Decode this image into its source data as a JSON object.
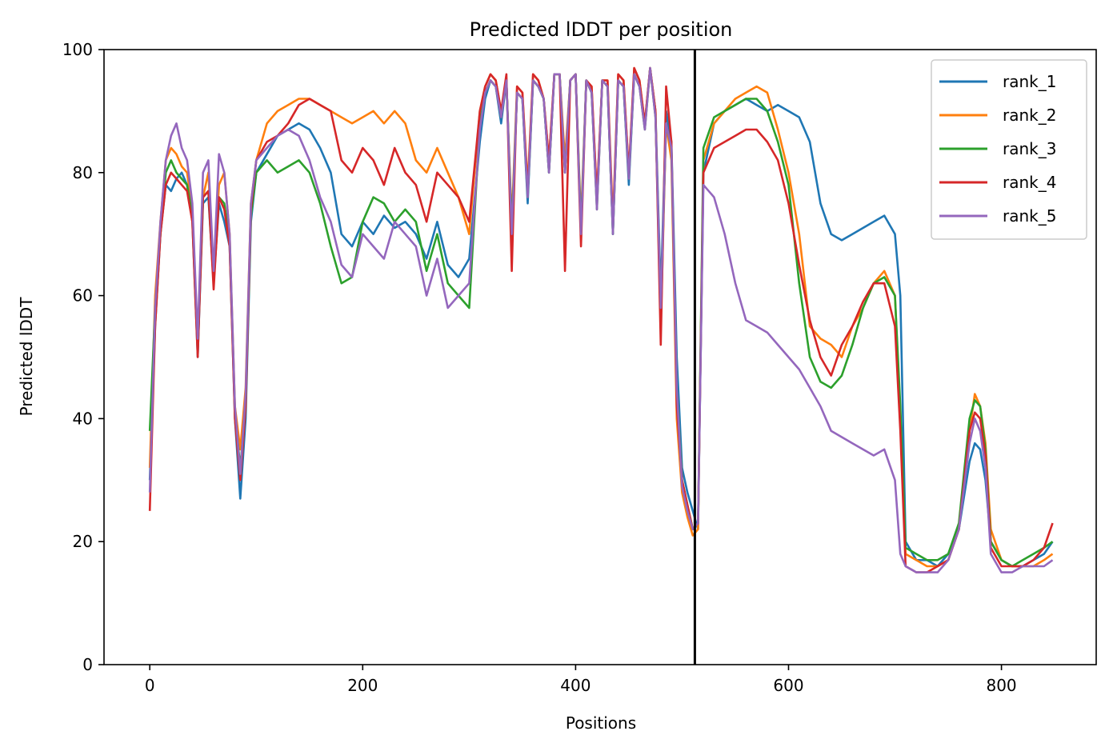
{
  "chart_data": {
    "type": "line",
    "title": "Predicted lDDT per position",
    "xlabel": "Positions",
    "ylabel": "Predicted lDDT",
    "xlim": [
      -43,
      889
    ],
    "ylim": [
      0,
      100
    ],
    "xticks": [
      0,
      200,
      400,
      600,
      800
    ],
    "yticks": [
      0,
      20,
      40,
      60,
      80,
      100
    ],
    "vline_x": 512,
    "legend_position": "top-right",
    "grid": false,
    "series": [
      {
        "name": "rank_1",
        "color": "#1f77b4",
        "x": [
          0,
          5,
          10,
          15,
          20,
          25,
          30,
          35,
          40,
          45,
          50,
          55,
          60,
          65,
          70,
          75,
          80,
          85,
          90,
          95,
          100,
          110,
          120,
          130,
          140,
          150,
          160,
          170,
          180,
          190,
          200,
          210,
          220,
          230,
          240,
          250,
          260,
          270,
          280,
          290,
          300,
          310,
          315,
          320,
          325,
          330,
          335,
          340,
          345,
          350,
          355,
          360,
          365,
          370,
          375,
          380,
          385,
          390,
          395,
          400,
          405,
          410,
          415,
          420,
          425,
          430,
          435,
          440,
          445,
          450,
          455,
          460,
          465,
          470,
          475,
          480,
          485,
          490,
          495,
          500,
          505,
          510,
          515,
          520,
          530,
          540,
          550,
          560,
          570,
          580,
          590,
          600,
          610,
          620,
          630,
          640,
          650,
          660,
          670,
          680,
          690,
          700,
          705,
          710,
          720,
          730,
          740,
          750,
          760,
          770,
          775,
          780,
          785,
          790,
          800,
          810,
          820,
          830,
          840,
          848
        ],
        "y": [
          30,
          55,
          70,
          78,
          77,
          79,
          80,
          78,
          72,
          50,
          75,
          76,
          62,
          75,
          72,
          68,
          40,
          27,
          40,
          72,
          80,
          83,
          86,
          87,
          88,
          87,
          84,
          80,
          70,
          68,
          72,
          70,
          73,
          71,
          72,
          70,
          66,
          72,
          65,
          63,
          66,
          85,
          92,
          95,
          94,
          88,
          95,
          70,
          93,
          92,
          75,
          95,
          94,
          92,
          80,
          96,
          96,
          80,
          95,
          96,
          70,
          95,
          93,
          75,
          95,
          94,
          70,
          95,
          94,
          78,
          96,
          94,
          88,
          97,
          90,
          60,
          90,
          85,
          50,
          32,
          28,
          25,
          22,
          80,
          88,
          90,
          91,
          92,
          91,
          90,
          91,
          90,
          89,
          85,
          75,
          70,
          69,
          70,
          71,
          72,
          73,
          70,
          60,
          20,
          17,
          17,
          16,
          18,
          22,
          33,
          36,
          35,
          30,
          20,
          17,
          16,
          16,
          17,
          18,
          20
        ]
      },
      {
        "name": "rank_2",
        "color": "#ff7f0e",
        "x": [
          0,
          5,
          10,
          15,
          20,
          25,
          30,
          35,
          40,
          45,
          50,
          55,
          60,
          65,
          70,
          75,
          80,
          85,
          90,
          95,
          100,
          110,
          120,
          130,
          140,
          150,
          160,
          170,
          180,
          190,
          200,
          210,
          220,
          230,
          240,
          250,
          260,
          270,
          280,
          290,
          300,
          310,
          315,
          320,
          325,
          330,
          335,
          340,
          345,
          350,
          355,
          360,
          365,
          370,
          375,
          380,
          385,
          390,
          395,
          400,
          405,
          410,
          415,
          420,
          425,
          430,
          435,
          440,
          445,
          450,
          455,
          460,
          465,
          470,
          475,
          480,
          485,
          490,
          495,
          500,
          505,
          510,
          515,
          520,
          530,
          540,
          550,
          560,
          570,
          580,
          590,
          600,
          610,
          620,
          630,
          640,
          650,
          660,
          670,
          680,
          690,
          700,
          705,
          710,
          720,
          730,
          740,
          750,
          760,
          770,
          775,
          780,
          785,
          790,
          800,
          810,
          820,
          830,
          840,
          848
        ],
        "y": [
          32,
          60,
          72,
          82,
          84,
          83,
          81,
          80,
          74,
          52,
          76,
          80,
          63,
          78,
          80,
          70,
          42,
          35,
          45,
          75,
          82,
          88,
          90,
          91,
          92,
          92,
          91,
          90,
          89,
          88,
          89,
          90,
          88,
          90,
          88,
          82,
          80,
          84,
          80,
          76,
          70,
          90,
          94,
          96,
          95,
          90,
          95,
          72,
          94,
          93,
          78,
          96,
          95,
          92,
          82,
          96,
          96,
          82,
          95,
          96,
          72,
          95,
          94,
          76,
          95,
          95,
          72,
          96,
          95,
          80,
          97,
          95,
          88,
          97,
          90,
          55,
          88,
          82,
          40,
          28,
          24,
          21,
          22,
          82,
          88,
          90,
          92,
          93,
          94,
          93,
          87,
          80,
          70,
          55,
          53,
          52,
          50,
          55,
          58,
          62,
          64,
          60,
          40,
          18,
          17,
          16,
          16,
          17,
          22,
          38,
          44,
          42,
          36,
          22,
          17,
          16,
          16,
          16,
          17,
          18
        ]
      },
      {
        "name": "rank_3",
        "color": "#2ca02c",
        "x": [
          0,
          5,
          10,
          15,
          20,
          25,
          30,
          35,
          40,
          45,
          50,
          55,
          60,
          65,
          70,
          75,
          80,
          85,
          90,
          95,
          100,
          110,
          120,
          130,
          140,
          150,
          160,
          170,
          180,
          190,
          200,
          210,
          220,
          230,
          240,
          250,
          260,
          270,
          280,
          290,
          300,
          310,
          315,
          320,
          325,
          330,
          335,
          340,
          345,
          350,
          355,
          360,
          365,
          370,
          375,
          380,
          385,
          390,
          395,
          400,
          405,
          410,
          415,
          420,
          425,
          430,
          435,
          440,
          445,
          450,
          455,
          460,
          465,
          470,
          475,
          480,
          485,
          490,
          495,
          500,
          505,
          510,
          515,
          520,
          530,
          540,
          550,
          560,
          570,
          580,
          590,
          600,
          610,
          620,
          630,
          640,
          650,
          660,
          670,
          680,
          690,
          700,
          705,
          710,
          720,
          730,
          740,
          750,
          760,
          770,
          775,
          780,
          785,
          790,
          800,
          810,
          820,
          830,
          840,
          848
        ],
        "y": [
          38,
          58,
          70,
          80,
          82,
          80,
          79,
          78,
          73,
          51,
          76,
          77,
          62,
          76,
          75,
          69,
          41,
          32,
          42,
          73,
          80,
          82,
          80,
          81,
          82,
          80,
          75,
          68,
          62,
          63,
          72,
          76,
          75,
          72,
          74,
          72,
          64,
          70,
          62,
          60,
          58,
          88,
          93,
          95,
          94,
          89,
          95,
          71,
          93,
          92,
          76,
          95,
          94,
          92,
          80,
          96,
          96,
          80,
          95,
          96,
          71,
          95,
          93,
          74,
          95,
          94,
          70,
          95,
          94,
          79,
          96,
          94,
          87,
          97,
          89,
          58,
          88,
          84,
          45,
          30,
          26,
          22,
          23,
          84,
          89,
          90,
          91,
          92,
          92,
          90,
          85,
          78,
          62,
          50,
          46,
          45,
          47,
          52,
          58,
          62,
          63,
          60,
          42,
          19,
          18,
          17,
          17,
          18,
          23,
          40,
          43,
          42,
          35,
          20,
          17,
          16,
          17,
          18,
          19,
          20
        ]
      },
      {
        "name": "rank_4",
        "color": "#d62728",
        "x": [
          0,
          5,
          10,
          15,
          20,
          25,
          30,
          35,
          40,
          45,
          50,
          55,
          60,
          65,
          70,
          75,
          80,
          85,
          90,
          95,
          100,
          110,
          120,
          130,
          140,
          150,
          160,
          170,
          180,
          190,
          200,
          210,
          220,
          230,
          240,
          250,
          260,
          270,
          280,
          290,
          300,
          310,
          315,
          320,
          325,
          330,
          335,
          340,
          345,
          350,
          355,
          360,
          365,
          370,
          375,
          380,
          385,
          390,
          395,
          400,
          405,
          410,
          415,
          420,
          425,
          430,
          435,
          440,
          445,
          450,
          455,
          460,
          465,
          470,
          475,
          480,
          485,
          490,
          495,
          500,
          505,
          510,
          515,
          520,
          530,
          540,
          550,
          560,
          570,
          580,
          590,
          600,
          610,
          620,
          630,
          640,
          650,
          660,
          670,
          680,
          690,
          700,
          705,
          710,
          720,
          730,
          740,
          750,
          760,
          770,
          775,
          780,
          785,
          790,
          800,
          810,
          820,
          830,
          840,
          848
        ],
        "y": [
          25,
          55,
          70,
          78,
          80,
          79,
          78,
          77,
          72,
          50,
          76,
          77,
          61,
          76,
          74,
          68,
          40,
          30,
          42,
          74,
          82,
          85,
          86,
          88,
          91,
          92,
          91,
          90,
          82,
          80,
          84,
          82,
          78,
          84,
          80,
          78,
          72,
          80,
          78,
          76,
          72,
          90,
          94,
          96,
          95,
          90,
          96,
          64,
          94,
          93,
          77,
          96,
          95,
          92,
          82,
          96,
          96,
          64,
          95,
          96,
          68,
          95,
          94,
          76,
          95,
          95,
          71,
          96,
          95,
          80,
          97,
          95,
          88,
          97,
          90,
          52,
          94,
          85,
          42,
          30,
          26,
          22,
          23,
          80,
          84,
          85,
          86,
          87,
          87,
          85,
          82,
          75,
          65,
          56,
          50,
          47,
          52,
          55,
          59,
          62,
          62,
          55,
          38,
          16,
          15,
          15,
          16,
          17,
          22,
          38,
          41,
          40,
          34,
          19,
          16,
          16,
          16,
          17,
          19,
          23
        ]
      },
      {
        "name": "rank_5",
        "color": "#9467bd",
        "x": [
          0,
          5,
          10,
          15,
          20,
          25,
          30,
          35,
          40,
          45,
          50,
          55,
          60,
          65,
          70,
          75,
          80,
          85,
          90,
          95,
          100,
          110,
          120,
          130,
          140,
          150,
          160,
          170,
          180,
          190,
          200,
          210,
          220,
          230,
          240,
          250,
          260,
          270,
          280,
          290,
          300,
          310,
          315,
          320,
          325,
          330,
          335,
          340,
          345,
          350,
          355,
          360,
          365,
          370,
          375,
          380,
          385,
          390,
          395,
          400,
          405,
          410,
          415,
          420,
          425,
          430,
          435,
          440,
          445,
          450,
          455,
          460,
          465,
          470,
          475,
          480,
          485,
          490,
          495,
          500,
          505,
          510,
          515,
          520,
          530,
          540,
          550,
          560,
          570,
          580,
          590,
          600,
          610,
          620,
          630,
          640,
          650,
          660,
          670,
          680,
          690,
          700,
          705,
          710,
          720,
          730,
          740,
          750,
          760,
          770,
          775,
          780,
          785,
          790,
          800,
          810,
          820,
          830,
          840,
          848
        ],
        "y": [
          28,
          58,
          72,
          82,
          86,
          88,
          84,
          82,
          75,
          53,
          80,
          82,
          64,
          83,
          80,
          70,
          42,
          31,
          44,
          75,
          82,
          84,
          86,
          87,
          86,
          82,
          76,
          72,
          65,
          63,
          70,
          68,
          66,
          72,
          70,
          68,
          60,
          66,
          58,
          60,
          62,
          87,
          93,
          95,
          94,
          89,
          95,
          70,
          93,
          92,
          76,
          95,
          94,
          92,
          80,
          96,
          96,
          80,
          95,
          96,
          70,
          95,
          93,
          74,
          95,
          94,
          70,
          95,
          94,
          79,
          96,
          94,
          87,
          97,
          89,
          58,
          88,
          84,
          45,
          29,
          25,
          22,
          23,
          78,
          76,
          70,
          62,
          56,
          55,
          54,
          52,
          50,
          48,
          45,
          42,
          38,
          37,
          36,
          35,
          34,
          35,
          30,
          18,
          16,
          15,
          15,
          15,
          17,
          22,
          36,
          40,
          38,
          32,
          18,
          15,
          15,
          16,
          16,
          16,
          17
        ]
      }
    ]
  }
}
